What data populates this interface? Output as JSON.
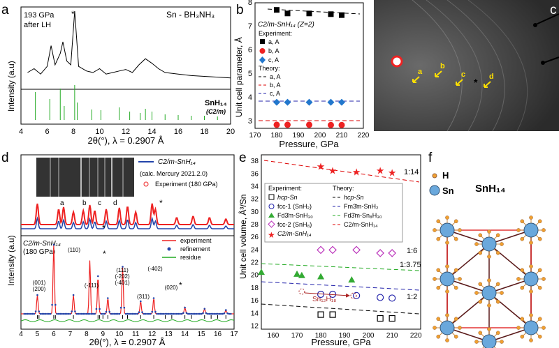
{
  "panels": {
    "a": {
      "letter": "a",
      "pressure": "193 GPa",
      "condition": "after LH",
      "system": "Sn - BH₃NH₃",
      "star": "*",
      "phase_label": "SnH₁₄",
      "phase_sym": "(C2/m)",
      "ylabel": "Intensity (a.u)",
      "xlabel": "2θ(°), λ = 0.2907 Å",
      "xticks": [
        "4",
        "6",
        "8",
        "10",
        "12",
        "14",
        "16",
        "18",
        "20"
      ]
    },
    "b": {
      "letter": "b",
      "structure": "C2/m-SnH₁₄ (Z=2)",
      "ylabel": "Unit cell parameter, Å",
      "xlabel": "Pressure, GPa",
      "legend_exp_title": "Experiment:",
      "legend_exp": [
        "a, A",
        "b, A",
        "c, A"
      ],
      "legend_th_title": "Theory:",
      "legend_th": [
        "a, A",
        "b, A",
        "c, A"
      ],
      "xticks": [
        "170",
        "180",
        "190",
        "200",
        "210",
        "220"
      ],
      "yticks": [
        "3",
        "4",
        "5",
        "6",
        "7",
        "8"
      ]
    },
    "c": {
      "letter": "c",
      "markers": [
        "a",
        "b",
        "c",
        "d"
      ],
      "star": "*"
    },
    "d": {
      "letter": "d",
      "legend_calc": "C2/m-SnH₁₄",
      "legend_calc_note": "(calc. Mercury 2021.2.0)",
      "legend_exp": "Experiment (180 GPa)",
      "peak_letters": [
        "a",
        "b",
        "c",
        "d"
      ],
      "lower_title": "C2/m-SnH₁₄",
      "lower_pressure": "(180 GPa)",
      "lower_legend": [
        "experiment",
        "refinement",
        "residue"
      ],
      "hkl": [
        "(001)",
        "(200)",
        "(110)",
        "(-111)",
        "(111)",
        "(-202)",
        "(-401)",
        "(311)",
        "(-402)",
        "(020)"
      ],
      "stars": [
        "*",
        "*",
        "*",
        "*"
      ],
      "ylabel": "Intensity (a.u)",
      "xlabel": "2θ(°), λ = 0.2907 Å",
      "xticks": [
        "4",
        "5",
        "6",
        "7",
        "8",
        "9",
        "10",
        "11",
        "12",
        "13",
        "14",
        "15",
        "16",
        "17"
      ]
    },
    "e": {
      "letter": "e",
      "ylabel": "Unit cell volume, Å³/Sn",
      "xlabel": "Pressure, GPa",
      "legend_exp_title": "Experiment:",
      "legend_th_title": "Theory:",
      "legend_exp": [
        "hcp-Sn",
        "fcc-1 (SnH₂)",
        "Fd3̄m-SnH₃₀",
        "fcc-2 (SnH₈)",
        "C2/m-SnH₁₄"
      ],
      "legend_th": [
        "hcp-Sn",
        "Fm3̄m-SnH₂",
        "Fd3̄m-Sn₈H₃₀",
        "C2/m-SnH₁₄"
      ],
      "ratios": [
        "1:14",
        "1:6",
        "1:3.75",
        "1:2"
      ],
      "annot": "Sn₁₂H₁₈",
      "xticks": [
        "160",
        "170",
        "180",
        "190",
        "200",
        "210",
        "220"
      ],
      "yticks": [
        "12",
        "14",
        "16",
        "18",
        "20",
        "22",
        "24",
        "26",
        "28",
        "30",
        "32",
        "34",
        "36",
        "38"
      ]
    },
    "f": {
      "letter": "f",
      "legend_h": "H",
      "legend_sn": "Sn",
      "formula": "SnH₁₄"
    }
  },
  "chart_data": [
    {
      "type": "line",
      "panel": "a",
      "x": [
        4.5,
        5,
        5.5,
        6,
        6.3,
        6.6,
        7,
        7.2,
        7.5,
        7.8,
        8.1,
        8.4,
        9,
        9.5,
        10,
        10.5,
        11,
        11.5,
        12,
        12.5,
        13,
        13.5,
        14,
        14.5,
        15,
        16,
        17,
        18,
        19,
        20
      ],
      "y": [
        20,
        25,
        18,
        28,
        55,
        30,
        45,
        60,
        35,
        30,
        100,
        28,
        22,
        20,
        25,
        18,
        20,
        22,
        24,
        20,
        30,
        38,
        32,
        25,
        20,
        18,
        16,
        15,
        14,
        13
      ],
      "xlim": [
        4,
        20
      ]
    },
    {
      "type": "scatter",
      "panel": "b",
      "xlim": [
        170,
        220
      ],
      "ylim": [
        2.7,
        8
      ],
      "series": [
        {
          "name": "a, A",
          "x": [
            180,
            185,
            195,
            205,
            210
          ],
          "y": [
            7.7,
            7.55,
            7.55,
            7.52,
            7.48
          ]
        },
        {
          "name": "b, A",
          "x": [
            180,
            185,
            195,
            205,
            210
          ],
          "y": [
            2.85,
            2.85,
            2.85,
            2.84,
            2.84
          ]
        },
        {
          "name": "c, A",
          "x": [
            180,
            185,
            195,
            205,
            210
          ],
          "y": [
            3.8,
            3.8,
            3.8,
            3.8,
            3.8
          ]
        }
      ]
    },
    {
      "type": "scatter",
      "panel": "e",
      "xlim": [
        155,
        222
      ],
      "ylim": [
        11.5,
        39
      ],
      "series": [
        {
          "name": "hcp-Sn",
          "x": [
            180,
            185,
            205,
            210
          ],
          "y": [
            13.8,
            13.8,
            13.2,
            13.2
          ]
        },
        {
          "name": "fcc-1 (SnH₂)",
          "x": [
            180,
            185,
            195,
            205,
            210
          ],
          "y": [
            17,
            17,
            16.8,
            16.5,
            16.4
          ]
        },
        {
          "name": "Fd3̄m-SnH₃₀",
          "x": [
            155,
            170,
            172,
            180,
            193
          ],
          "y": [
            20.5,
            20.2,
            20,
            19.8,
            19.3
          ]
        },
        {
          "name": "fcc-2 (SnH₈)",
          "x": [
            180,
            185,
            195,
            205,
            210
          ],
          "y": [
            24,
            24,
            24,
            23.5,
            23.5
          ]
        },
        {
          "name": "C2/m-SnH₁₄",
          "x": [
            180,
            185,
            195,
            205,
            210
          ],
          "y": [
            37.2,
            36.5,
            36.3,
            36.5,
            36.2
          ]
        }
      ]
    }
  ]
}
